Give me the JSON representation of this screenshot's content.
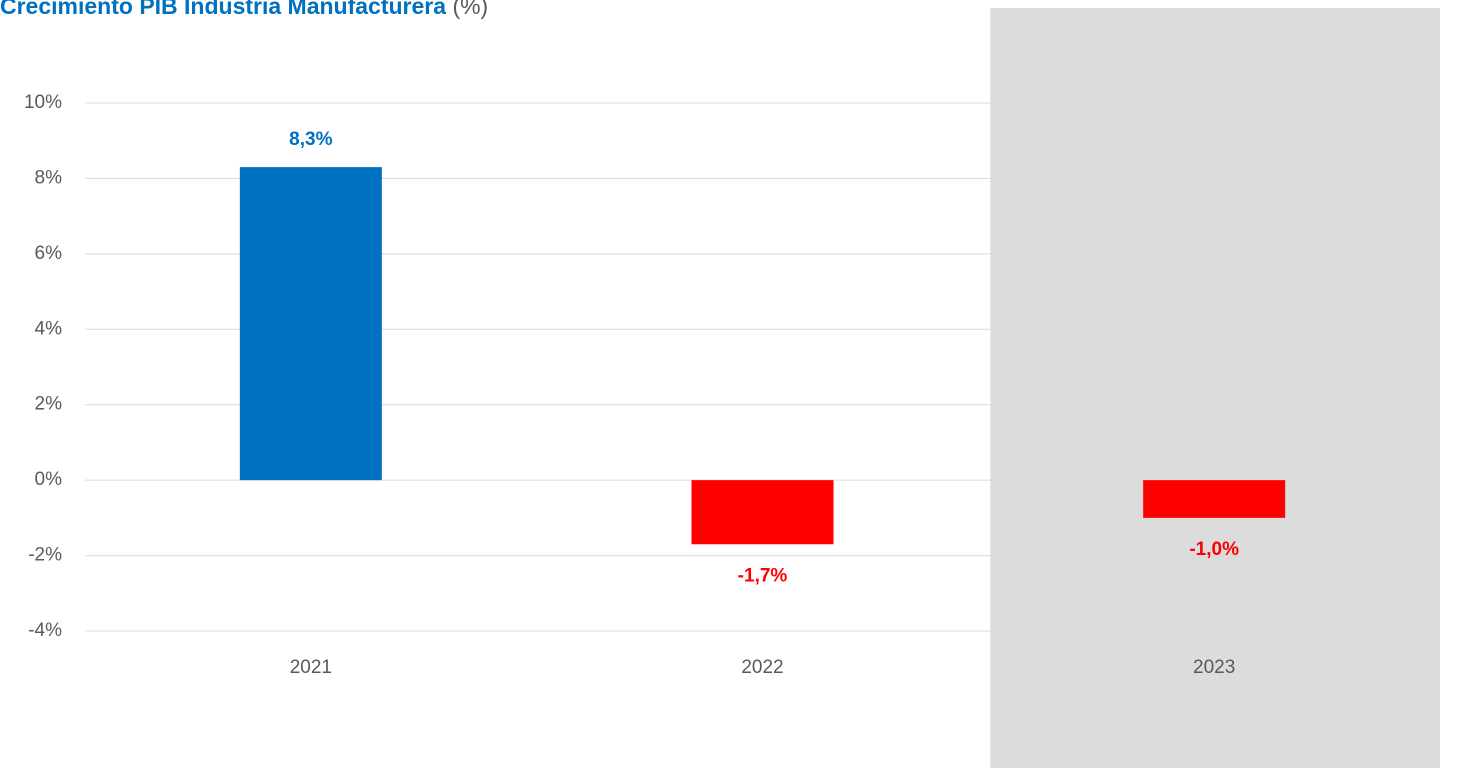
{
  "chart_data": {
    "type": "bar",
    "title": "Crecimiento PIB Industria Manufacturera",
    "title_suffix": "(%)",
    "categories": [
      "2021",
      "2022",
      "2023"
    ],
    "values": [
      8.3,
      -1.7,
      -1.0
    ],
    "value_labels": [
      "8,3%",
      "-1,7%",
      "-1,0%"
    ],
    "colors": [
      "#0070c0",
      "#ff0000",
      "#ff0000"
    ],
    "shaded": [
      false,
      false,
      true
    ],
    "shade_color": "#dcdcdc",
    "ylim": [
      -4,
      10
    ],
    "yticks": [
      {
        "value": -4,
        "label": "-4%"
      },
      {
        "value": -2,
        "label": "-2%"
      },
      {
        "value": 0,
        "label": "0%"
      },
      {
        "value": 2,
        "label": "2%"
      },
      {
        "value": 4,
        "label": "4%"
      },
      {
        "value": 6,
        "label": "6%"
      },
      {
        "value": 8,
        "label": "8%"
      },
      {
        "value": 10,
        "label": "10%"
      }
    ],
    "grid": true
  }
}
